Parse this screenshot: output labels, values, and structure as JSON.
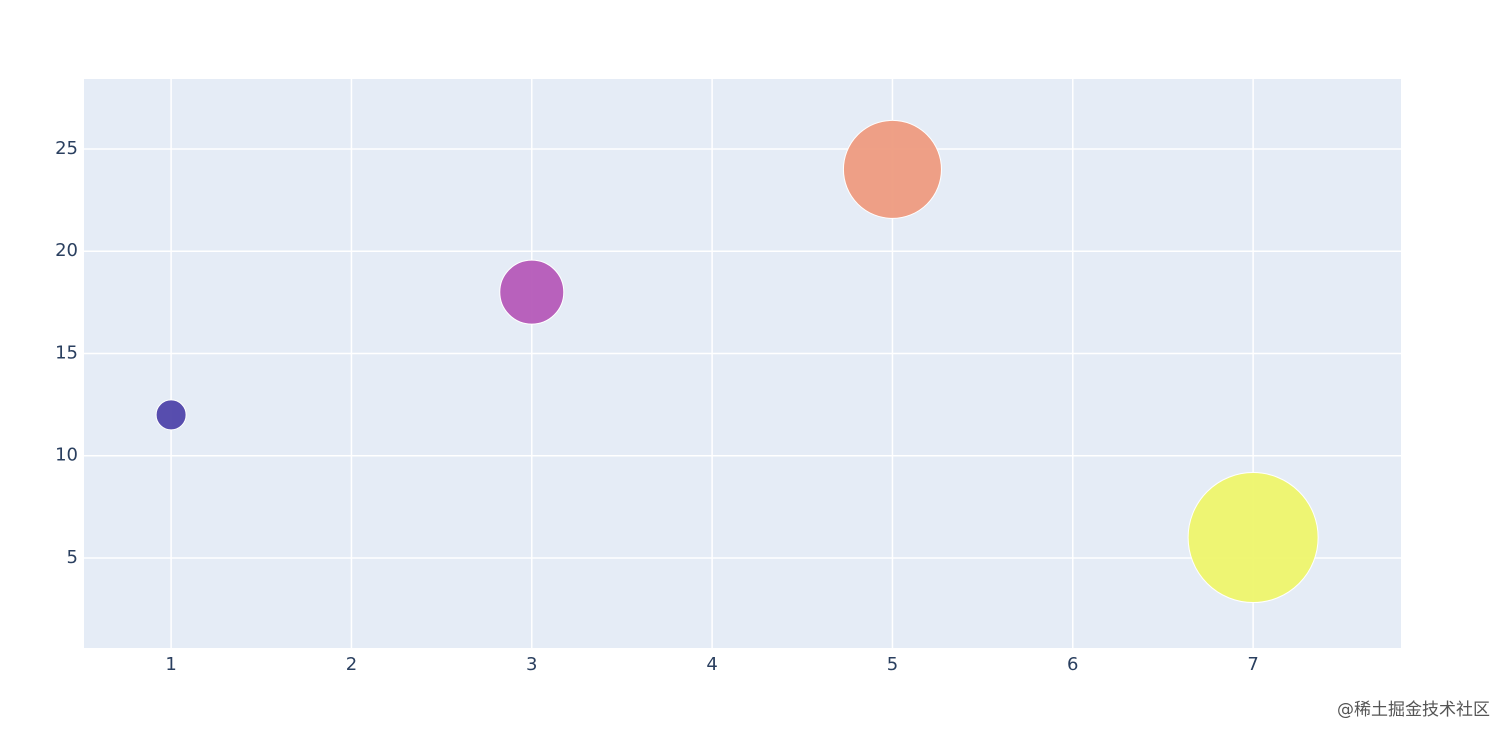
{
  "chart_data": {
    "type": "scatter",
    "x": [
      1,
      3,
      5,
      7
    ],
    "series": [
      {
        "values": [
          12,
          18,
          24,
          6
        ],
        "sizes": [
          30,
          64,
          98,
          130
        ],
        "colors": [
          "#4f44aa",
          "#b55ab8",
          "#ee9b80",
          "#eef56c"
        ]
      }
    ],
    "xlim": [
      0.517,
      7.82
    ],
    "ylim": [
      0.6,
      28.42
    ],
    "xticks": [
      1,
      2,
      3,
      4,
      5,
      6,
      7
    ],
    "yticks": [
      5,
      10,
      15,
      20,
      25
    ],
    "grid": true,
    "plot_bg": "#e5ecf6"
  },
  "watermark": "@稀土掘金技术社区"
}
